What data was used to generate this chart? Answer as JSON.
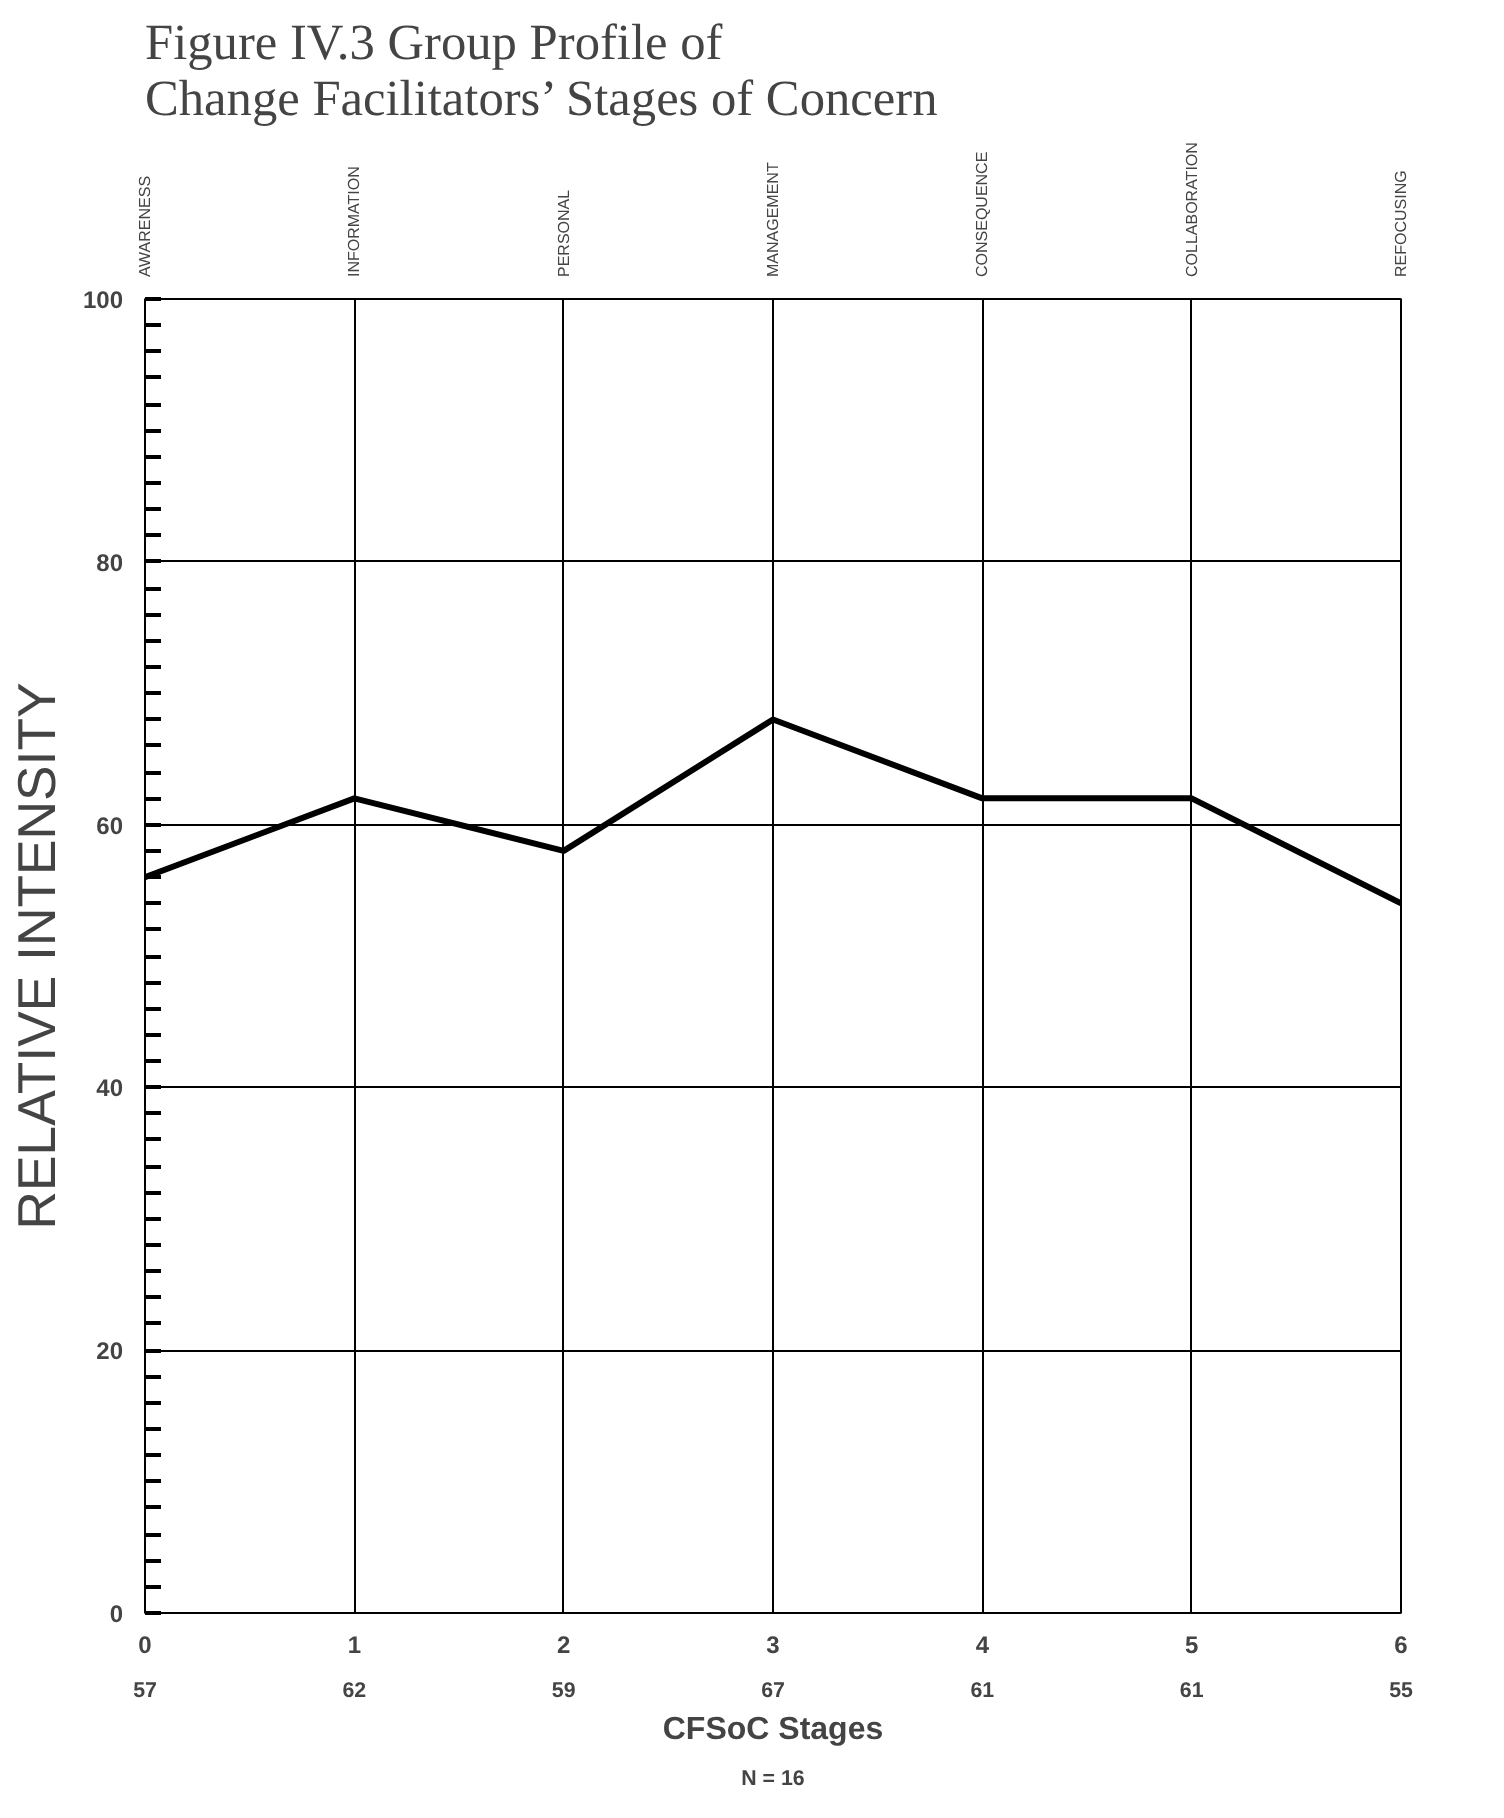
{
  "chart_data": {
    "type": "line",
    "title": "Figure IV.3 Group Profile of\nChange Facilitators’ Stages of Concern",
    "categories": [
      "AWARENESS",
      "INFORMATION",
      "PERSONAL",
      "MANAGEMENT",
      "CONSEQUENCE",
      "COLLABORATION",
      "REFOCUSING"
    ],
    "series": [
      {
        "color": "#000000",
        "values": [
          56,
          62,
          58,
          68,
          62,
          62,
          54
        ]
      }
    ],
    "ylim": [
      0,
      100
    ],
    "yticks": [
      0,
      20,
      40,
      60,
      80,
      100
    ],
    "xlabel": "CFSoC Stages",
    "ylabel": "RELATIVE INTENSITY",
    "annotations": [
      "0",
      "1",
      "2",
      "3",
      "4",
      "5",
      "6",
      "57",
      "62",
      "59",
      "67",
      "61",
      "61",
      "55",
      "N = 16"
    ],
    "grid": true,
    "marker": "none",
    "line_style": "solid"
  }
}
